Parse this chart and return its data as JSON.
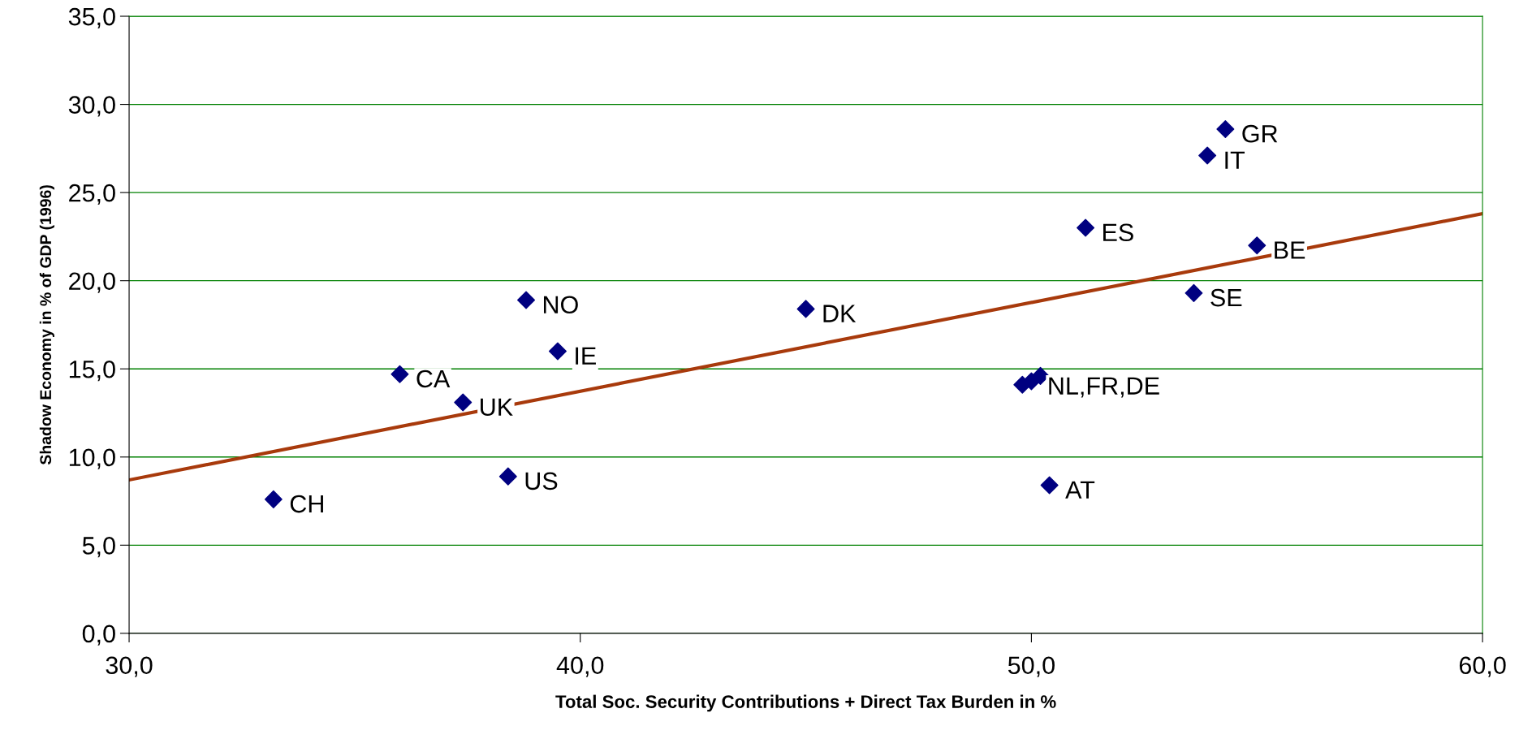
{
  "chart_data": {
    "type": "scatter",
    "xlabel": "Total Soc. Security Contributions + Direct Tax Burden in %",
    "ylabel": "Shadow Economy in % of GDP (1996)",
    "xlim": [
      30,
      60
    ],
    "xticks": [
      {
        "value": 30,
        "label": "30,0"
      },
      {
        "value": 40,
        "label": "40,0"
      },
      {
        "value": 50,
        "label": "50,0"
      },
      {
        "value": 60,
        "label": "60,0"
      }
    ],
    "ylim": [
      0,
      35
    ],
    "yticks": [
      {
        "value": 0,
        "label": "0,0"
      },
      {
        "value": 5,
        "label": "5,0"
      },
      {
        "value": 10,
        "label": "10,0"
      },
      {
        "value": 15,
        "label": "15,0"
      },
      {
        "value": 20,
        "label": "20,0"
      },
      {
        "value": 25,
        "label": "25,0"
      },
      {
        "value": 30,
        "label": "30,0"
      },
      {
        "value": 35,
        "label": "35,0"
      }
    ],
    "grid": "y",
    "legend": false,
    "marker": "diamond",
    "series": [
      {
        "color": "#000080",
        "x": [
          33.2,
          36.0,
          37.4,
          38.4,
          38.8,
          39.5,
          45.0,
          49.8,
          50.0,
          50.2,
          50.4,
          51.2,
          53.6,
          53.9,
          54.3,
          55.0
        ],
        "values": [
          7.6,
          14.7,
          13.1,
          8.9,
          18.9,
          16.0,
          18.4,
          14.1,
          14.3,
          14.6,
          8.4,
          23.0,
          19.3,
          27.1,
          28.6,
          22.0
        ]
      },
      {
        "type": "line",
        "color": "#a83a0c",
        "x": [
          30,
          60
        ],
        "values": [
          8.7,
          23.8
        ],
        "marker": "none"
      }
    ],
    "annotations": [
      {
        "text": "CH",
        "x": 33.2,
        "y": 7.6
      },
      {
        "text": "CA",
        "x": 36.0,
        "y": 14.7
      },
      {
        "text": "UK",
        "x": 37.4,
        "y": 13.1
      },
      {
        "text": "US",
        "x": 38.4,
        "y": 8.9
      },
      {
        "text": "NO",
        "x": 38.8,
        "y": 18.9
      },
      {
        "text": "IE",
        "x": 39.5,
        "y": 16.0
      },
      {
        "text": "DK",
        "x": 45.0,
        "y": 18.4
      },
      {
        "text": "NL,FR,DE",
        "x": 50.0,
        "y": 14.3
      },
      {
        "text": "AT",
        "x": 50.4,
        "y": 8.4
      },
      {
        "text": "ES",
        "x": 51.2,
        "y": 23.0
      },
      {
        "text": "SE",
        "x": 53.6,
        "y": 19.3
      },
      {
        "text": "IT",
        "x": 53.9,
        "y": 27.1
      },
      {
        "text": "GR",
        "x": 54.3,
        "y": 28.6
      },
      {
        "text": "BE",
        "x": 55.0,
        "y": 22.0
      }
    ]
  }
}
